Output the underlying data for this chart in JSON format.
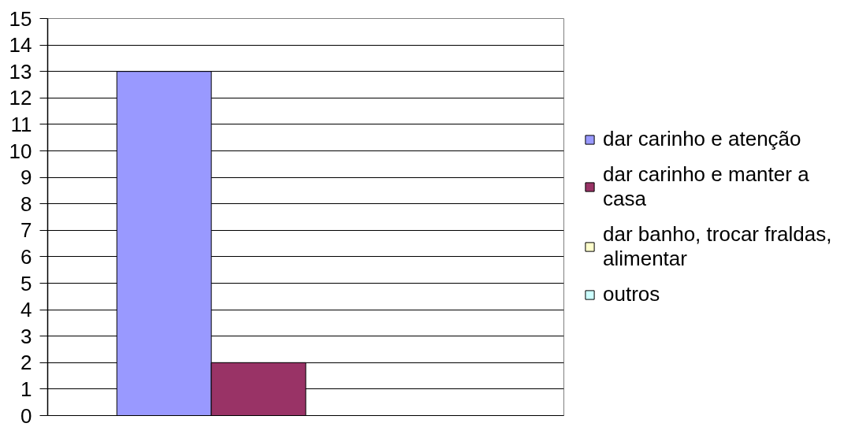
{
  "chart_data": {
    "type": "bar",
    "categories": [
      null
    ],
    "series": [
      {
        "name": "dar carinho e atenção",
        "color": "#9999ff",
        "values": [
          13
        ]
      },
      {
        "name": "dar carinho e manter a casa",
        "color": "#993366",
        "values": [
          2
        ]
      },
      {
        "name": "dar banho, trocar fraldas, alimentar",
        "color": "#ffffcc",
        "values": [
          null
        ]
      },
      {
        "name": "outros",
        "color": "#ccffff",
        "values": [
          null
        ]
      }
    ],
    "ylim": [
      0,
      15
    ],
    "yticks": [
      0,
      1,
      2,
      3,
      4,
      5,
      6,
      7,
      8,
      9,
      10,
      11,
      12,
      13,
      14,
      15
    ],
    "grid": "y",
    "legend": "right"
  }
}
